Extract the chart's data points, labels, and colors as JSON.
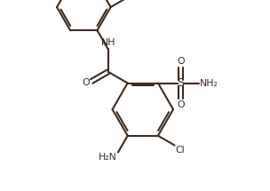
{
  "line_color": "#3d2b1f",
  "bg_color": "#ffffff",
  "line_width": 1.5,
  "font_size": 7.8,
  "figsize": [
    3.04,
    2.15
  ],
  "dpi": 100,
  "xlim": [
    -0.05,
    1.05
  ],
  "ylim": [
    -0.08,
    1.02
  ]
}
